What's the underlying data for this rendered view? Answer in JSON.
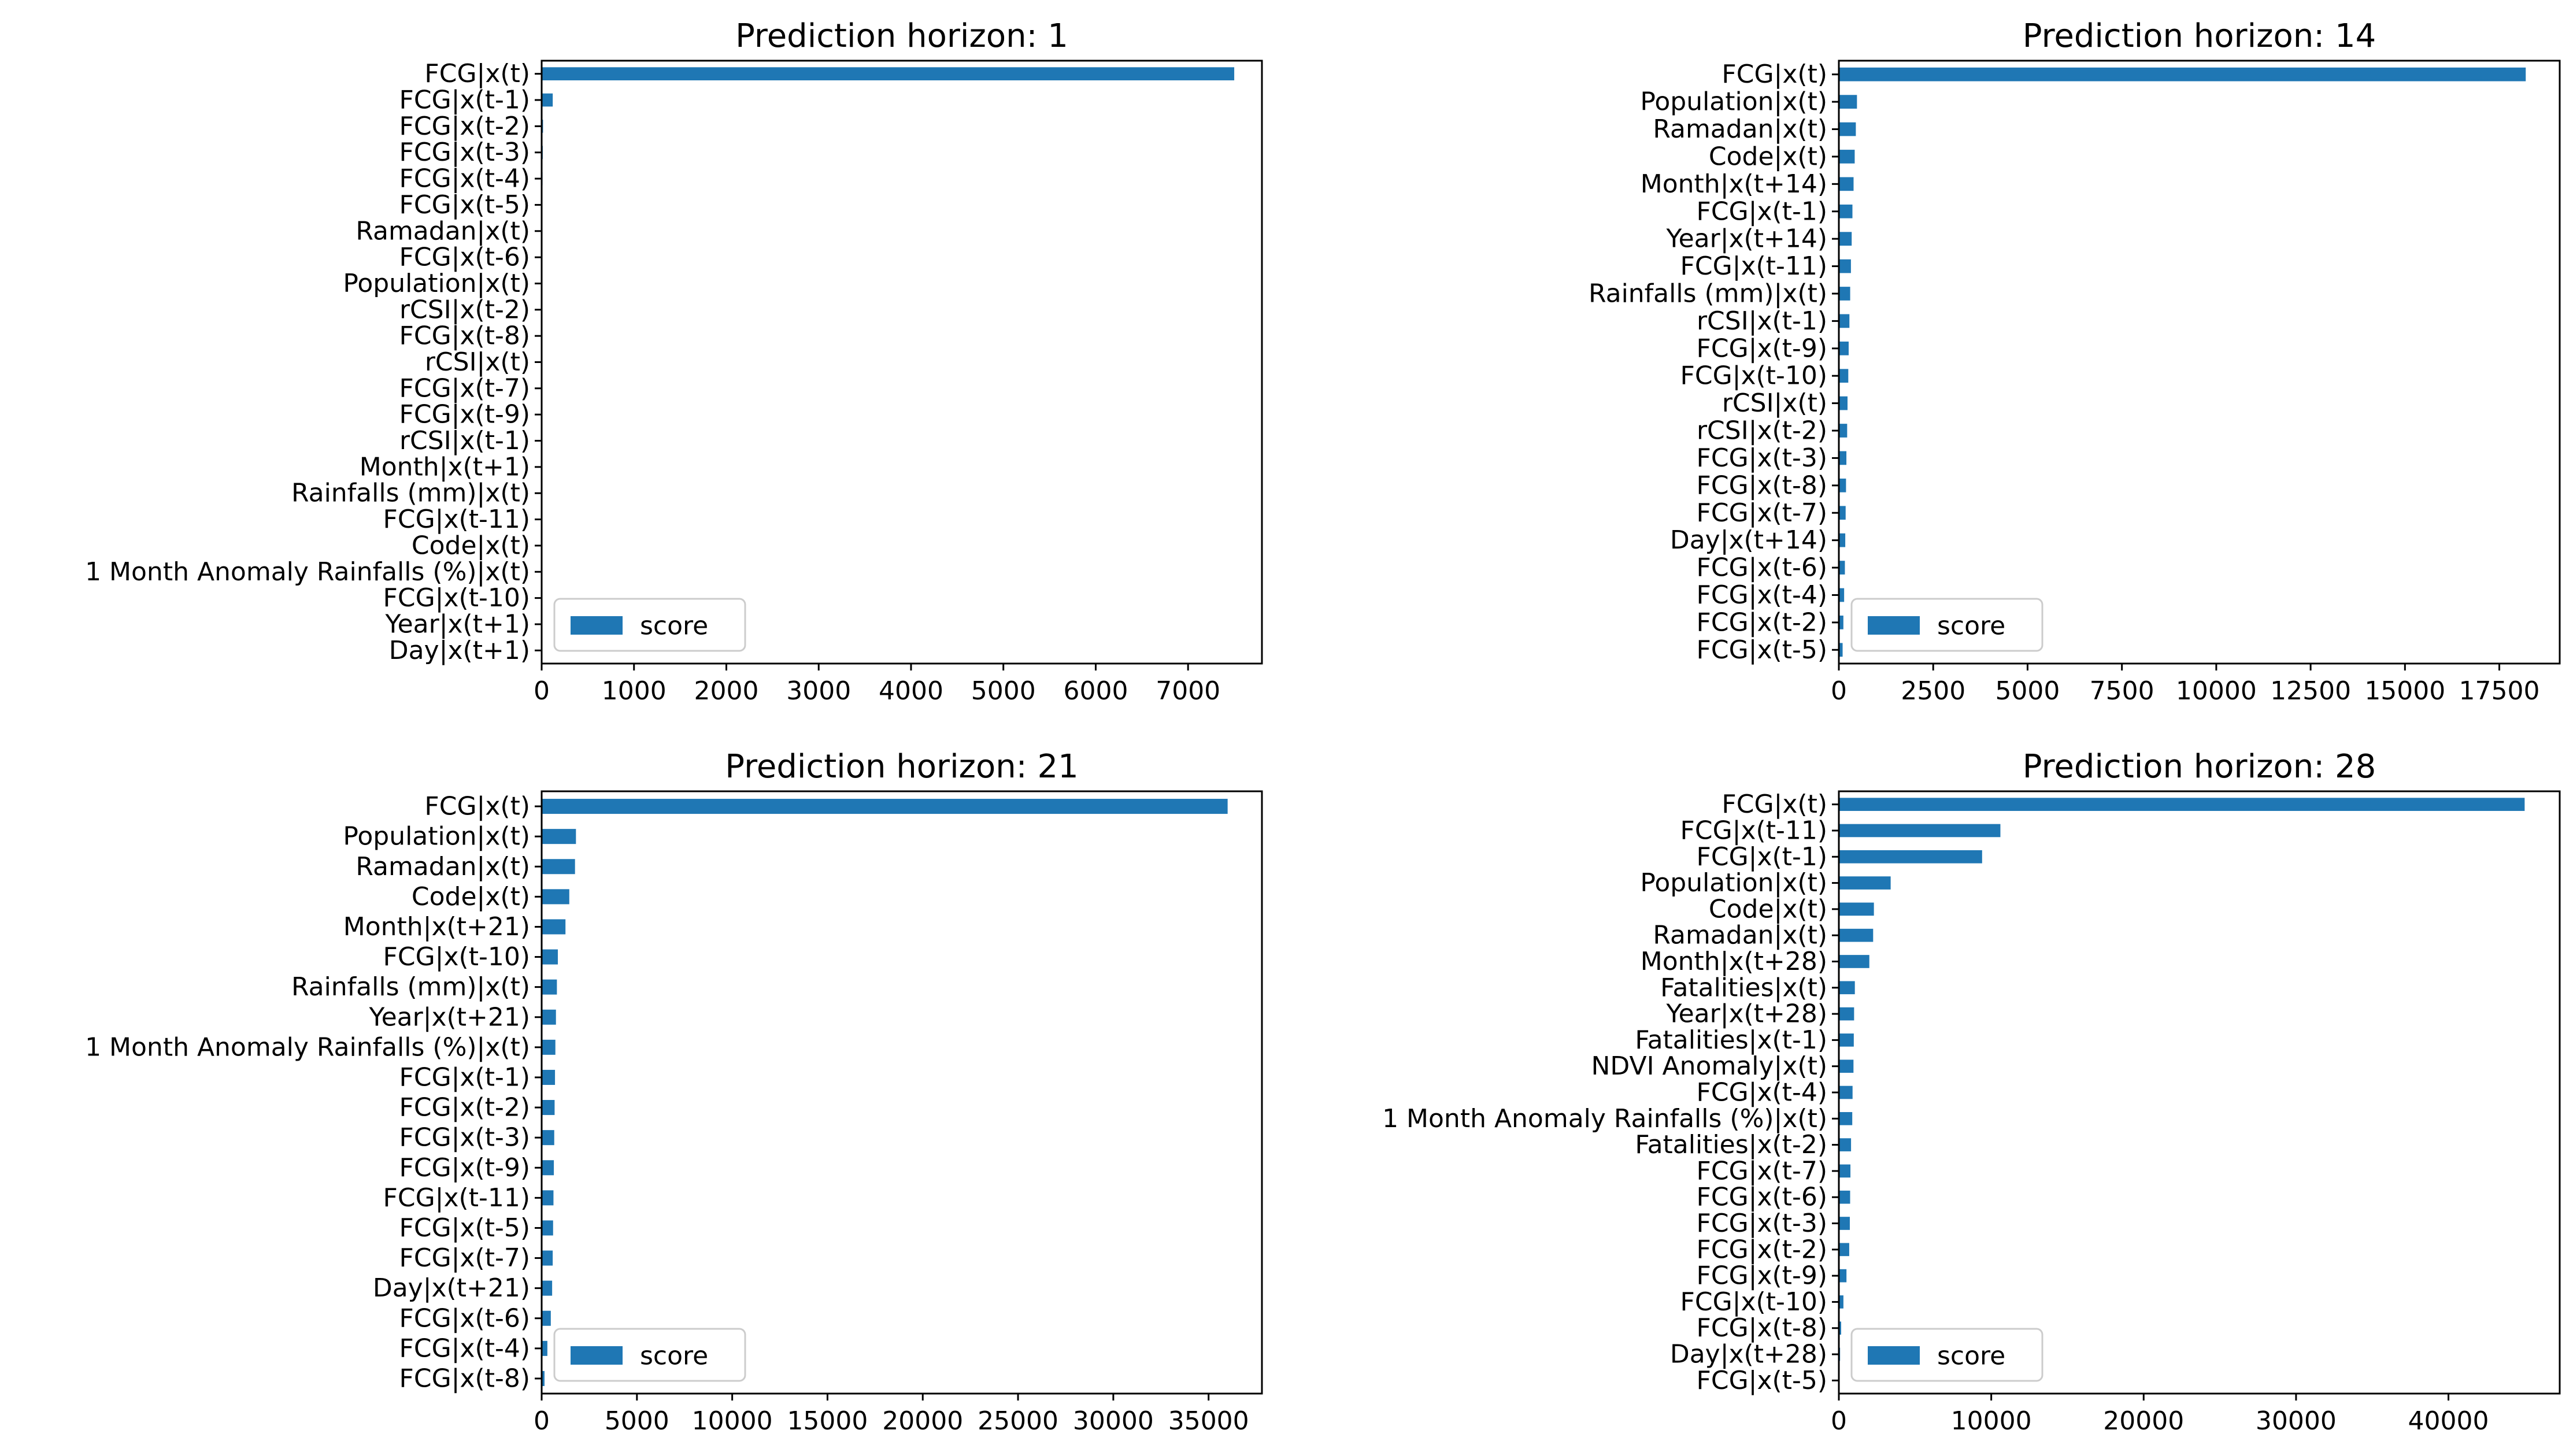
{
  "chart_data": [
    {
      "type": "bar",
      "orientation": "horizontal",
      "title": "Prediction horizon: 1",
      "series_name": "score",
      "legend_position": "lower-left",
      "xlim": [
        0,
        7800
      ],
      "xticks": [
        0,
        1000,
        2000,
        3000,
        4000,
        5000,
        6000,
        7000
      ],
      "categories": [
        "FCG|x(t)",
        "FCG|x(t-1)",
        "FCG|x(t-2)",
        "FCG|x(t-3)",
        "FCG|x(t-4)",
        "FCG|x(t-5)",
        "Ramadan|x(t)",
        "FCG|x(t-6)",
        "Population|x(t)",
        "rCSI|x(t-2)",
        "FCG|x(t-8)",
        "rCSI|x(t)",
        "FCG|x(t-7)",
        "FCG|x(t-9)",
        "rCSI|x(t-1)",
        "Month|x(t+1)",
        "Rainfalls (mm)|x(t)",
        "FCG|x(t-11)",
        "Code|x(t)",
        "1 Month Anomaly Rainfalls (%)|x(t)",
        "FCG|x(t-10)",
        "Year|x(t+1)",
        "Day|x(t+1)"
      ],
      "values": [
        7500,
        120,
        15,
        12,
        10,
        9,
        8,
        7,
        6,
        6,
        5,
        5,
        4,
        4,
        4,
        3,
        3,
        3,
        2,
        2,
        2,
        1,
        1
      ]
    },
    {
      "type": "bar",
      "orientation": "horizontal",
      "title": "Prediction horizon: 14",
      "series_name": "score",
      "legend_position": "lower-left",
      "xlim": [
        0,
        19100
      ],
      "xticks": [
        0,
        2500,
        5000,
        7500,
        10000,
        12500,
        15000,
        17500
      ],
      "categories": [
        "FCG|x(t)",
        "Population|x(t)",
        "Ramadan|x(t)",
        "Code|x(t)",
        "Month|x(t+14)",
        "FCG|x(t-1)",
        "Year|x(t+14)",
        "FCG|x(t-11)",
        "Rainfalls (mm)|x(t)",
        "rCSI|x(t-1)",
        "FCG|x(t-9)",
        "FCG|x(t-10)",
        "rCSI|x(t)",
        "rCSI|x(t-2)",
        "FCG|x(t-3)",
        "FCG|x(t-8)",
        "FCG|x(t-7)",
        "Day|x(t+14)",
        "FCG|x(t-6)",
        "FCG|x(t-4)",
        "FCG|x(t-2)",
        "FCG|x(t-5)"
      ],
      "values": [
        18200,
        480,
        450,
        420,
        390,
        360,
        340,
        320,
        300,
        280,
        260,
        250,
        230,
        220,
        200,
        190,
        180,
        170,
        160,
        140,
        120,
        100
      ]
    },
    {
      "type": "bar",
      "orientation": "horizontal",
      "title": "Prediction horizon: 21",
      "series_name": "score",
      "legend_position": "lower-left",
      "xlim": [
        0,
        37800
      ],
      "xticks": [
        0,
        5000,
        10000,
        15000,
        20000,
        25000,
        30000,
        35000
      ],
      "categories": [
        "FCG|x(t)",
        "Population|x(t)",
        "Ramadan|x(t)",
        "Code|x(t)",
        "Month|x(t+21)",
        "FCG|x(t-10)",
        "Rainfalls (mm)|x(t)",
        "Year|x(t+21)",
        "1 Month Anomaly Rainfalls (%)|x(t)",
        "FCG|x(t-1)",
        "FCG|x(t-2)",
        "FCG|x(t-3)",
        "FCG|x(t-9)",
        "FCG|x(t-11)",
        "FCG|x(t-5)",
        "FCG|x(t-7)",
        "Day|x(t+21)",
        "FCG|x(t-6)",
        "FCG|x(t-4)",
        "FCG|x(t-8)"
      ],
      "values": [
        36000,
        1800,
        1750,
        1450,
        1250,
        850,
        800,
        750,
        720,
        700,
        680,
        660,
        640,
        620,
        600,
        580,
        550,
        480,
        300,
        150
      ]
    },
    {
      "type": "bar",
      "orientation": "horizontal",
      "title": "Prediction horizon: 28",
      "series_name": "score",
      "legend_position": "lower-left",
      "xlim": [
        0,
        47300
      ],
      "xticks": [
        0,
        10000,
        20000,
        30000,
        40000
      ],
      "categories": [
        "FCG|x(t)",
        "FCG|x(t-11)",
        "FCG|x(t-1)",
        "Population|x(t)",
        "Code|x(t)",
        "Ramadan|x(t)",
        "Month|x(t+28)",
        "Fatalities|x(t)",
        "Year|x(t+28)",
        "Fatalities|x(t-1)",
        "NDVI Anomaly|x(t)",
        "FCG|x(t-4)",
        "1 Month Anomaly Rainfalls (%)|x(t)",
        "Fatalities|x(t-2)",
        "FCG|x(t-7)",
        "FCG|x(t-6)",
        "FCG|x(t-3)",
        "FCG|x(t-2)",
        "FCG|x(t-9)",
        "FCG|x(t-10)",
        "FCG|x(t-8)",
        "Day|x(t+28)",
        "FCG|x(t-5)"
      ],
      "values": [
        45000,
        10600,
        9400,
        3400,
        2300,
        2250,
        2000,
        1050,
        1000,
        980,
        960,
        900,
        880,
        800,
        760,
        740,
        720,
        680,
        500,
        300,
        150,
        80,
        40
      ]
    }
  ],
  "colors": {
    "bar": "#1f77b4",
    "axis": "#000000",
    "legend_border": "#cccccc"
  }
}
